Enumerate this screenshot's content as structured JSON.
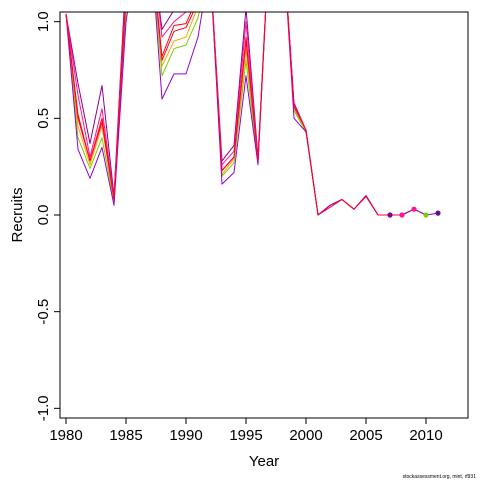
{
  "chart_data": {
    "type": "line",
    "xlabel": "Year",
    "ylabel": "Recruits",
    "xlim": [
      1979.5,
      2013.5
    ],
    "ylim": [
      -1.05,
      1.05
    ],
    "x_ticks": [
      1980,
      1985,
      1990,
      1995,
      2000,
      2005,
      2010
    ],
    "x_tick_labels": [
      "1980",
      "1985",
      "1990",
      "1995",
      "2000",
      "2005",
      "2010"
    ],
    "y_ticks": [
      -1.0,
      -0.5,
      0.0,
      0.5,
      1.0
    ],
    "y_tick_labels": [
      "-1.0",
      "-0.5",
      "0.0",
      "0.5",
      "1.0"
    ],
    "grid": false,
    "credit": "stockassessment.org, mint, rf931",
    "x": [
      1980,
      1981,
      1982,
      1983,
      1984,
      1985,
      1986,
      1987,
      1988,
      1989,
      1990,
      1991,
      1992,
      1993,
      1994,
      1995,
      1996,
      1997,
      1998,
      1999,
      2000,
      2001,
      2002,
      2003,
      2004,
      2005,
      2006,
      2007,
      2008,
      2009,
      2010,
      2011
    ],
    "series": [
      {
        "color": "#8B008B",
        "values": [
          1.04,
          0.68,
          0.37,
          0.67,
          0.1,
          1.25,
          1.4,
          1.45,
          0.96,
          1.06,
          1.08,
          1.2,
          1.3,
          0.28,
          0.36,
          1.07,
          0.3,
          1.5,
          1.5,
          0.58,
          0.44,
          0.0,
          0.05,
          0.08,
          0.03,
          0.1,
          0.0,
          0.0,
          0.0,
          0.03,
          null,
          null
        ]
      },
      {
        "color": "#FF1493",
        "values": [
          1.04,
          0.62,
          0.3,
          0.55,
          0.09,
          1.2,
          1.4,
          1.45,
          0.92,
          1.0,
          1.05,
          1.17,
          1.3,
          0.26,
          0.33,
          1.0,
          0.29,
          1.5,
          1.5,
          0.57,
          0.44,
          0.0,
          0.05,
          0.08,
          0.03,
          0.1,
          0.0,
          0.0,
          0.0,
          0.03,
          null,
          null
        ]
      },
      {
        "color": "#FF0000",
        "values": [
          1.04,
          0.52,
          0.28,
          0.5,
          0.08,
          1.15,
          1.4,
          1.45,
          0.82,
          0.98,
          0.99,
          1.13,
          1.3,
          0.23,
          0.3,
          0.92,
          0.28,
          1.5,
          1.5,
          0.56,
          0.44,
          0.0,
          0.05,
          0.08,
          0.03,
          0.1,
          0.0,
          0.0,
          0.0,
          null,
          null,
          null
        ]
      },
      {
        "color": "#FFA500",
        "values": [
          1.04,
          0.46,
          0.26,
          0.46,
          0.08,
          1.1,
          1.4,
          1.45,
          0.77,
          0.9,
          0.92,
          1.08,
          1.3,
          0.21,
          0.29,
          0.86,
          0.28,
          1.5,
          1.5,
          0.55,
          0.44,
          0.0,
          0.05,
          0.08,
          0.03,
          0.1,
          0.0,
          0.0,
          0.0,
          0.03,
          0.0,
          null
        ]
      },
      {
        "color": "#7CCD00",
        "values": [
          1.04,
          0.4,
          0.24,
          0.4,
          0.07,
          1.05,
          1.4,
          1.45,
          0.72,
          0.86,
          0.88,
          1.02,
          1.3,
          0.2,
          0.27,
          0.8,
          0.27,
          1.5,
          1.5,
          0.54,
          0.43,
          0.0,
          0.05,
          0.08,
          0.03,
          0.1,
          0.0,
          0.0,
          0.0,
          0.03,
          0.0,
          null
        ]
      },
      {
        "color": "#9400D3",
        "values": [
          1.04,
          0.34,
          0.19,
          0.35,
          0.05,
          1.0,
          1.4,
          1.45,
          0.6,
          0.73,
          0.73,
          0.92,
          1.3,
          0.16,
          0.22,
          0.72,
          0.26,
          1.5,
          1.5,
          0.5,
          0.43,
          0.0,
          0.05,
          0.08,
          0.03,
          0.1,
          0.0,
          0.0,
          0.0,
          0.03,
          0.0,
          0.01
        ]
      },
      {
        "color": "#FF0033",
        "values": [
          1.04,
          0.5,
          0.28,
          0.48,
          0.08,
          1.12,
          1.4,
          1.45,
          0.8,
          0.95,
          0.97,
          1.1,
          1.3,
          0.23,
          0.3,
          0.9,
          0.28,
          1.5,
          1.5,
          0.56,
          0.44,
          0.0,
          0.04,
          0.08,
          0.03,
          0.095,
          0.0,
          0.0,
          0.0,
          null,
          null,
          null
        ]
      }
    ],
    "points": [
      {
        "x": 2007,
        "y": 0.0,
        "color": "#8B008B"
      },
      {
        "x": 2008,
        "y": 0.0,
        "color": "#FF1493"
      },
      {
        "x": 2009,
        "y": 0.03,
        "color": "#FF1493"
      },
      {
        "x": 2010,
        "y": 0.0,
        "color": "#7CCD00"
      },
      {
        "x": 2011,
        "y": 0.01,
        "color": "#6A0D8B"
      }
    ]
  }
}
